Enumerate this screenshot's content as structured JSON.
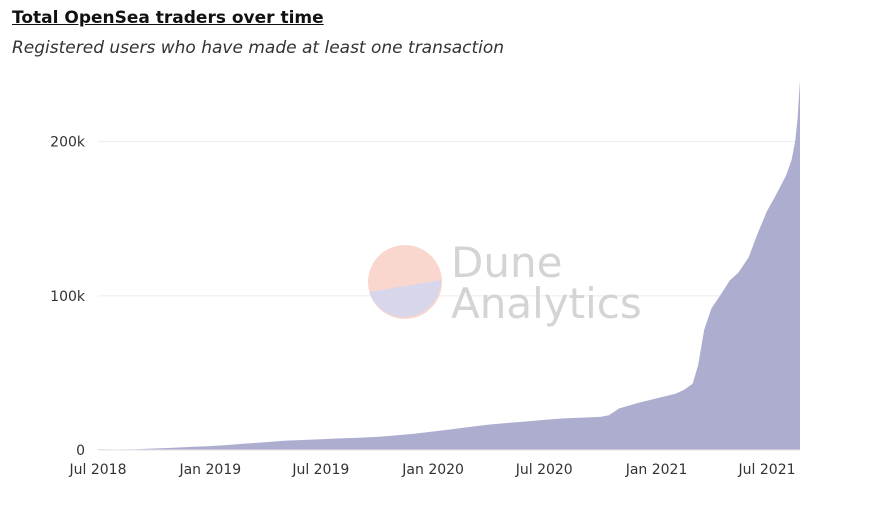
{
  "chart_data": {
    "type": "area",
    "title": "Total OpenSea traders over time",
    "subtitle": "Registered users who have made at least one transaction",
    "xlabel": "",
    "ylabel": "",
    "x_ticks": [
      "Jul 2018",
      "Jan 2019",
      "Jul 2019",
      "Jan 2020",
      "Jul 2020",
      "Jan 2021",
      "Jul 2021"
    ],
    "y_ticks": [
      "0",
      "100k",
      "200k"
    ],
    "ylim": [
      0,
      240000
    ],
    "xlim": [
      "2018-07-01",
      "2021-08-24"
    ],
    "grid": "horizontal",
    "legend": "none",
    "series_color": "#a9a9cc",
    "x": [
      "2018-07-01",
      "2018-08-01",
      "2018-09-01",
      "2018-10-01",
      "2018-11-01",
      "2018-12-01",
      "2019-01-01",
      "2019-02-01",
      "2019-03-01",
      "2019-04-01",
      "2019-05-01",
      "2019-06-01",
      "2019-07-01",
      "2019-08-01",
      "2019-09-01",
      "2019-10-01",
      "2019-11-01",
      "2019-12-01",
      "2020-01-01",
      "2020-02-01",
      "2020-03-01",
      "2020-04-01",
      "2020-05-01",
      "2020-06-01",
      "2020-07-01",
      "2020-08-01",
      "2020-09-01",
      "2020-10-01",
      "2020-10-15",
      "2020-11-01",
      "2020-12-01",
      "2021-01-01",
      "2021-02-01",
      "2021-02-15",
      "2021-03-01",
      "2021-03-10",
      "2021-03-20",
      "2021-04-01",
      "2021-04-15",
      "2021-05-01",
      "2021-05-15",
      "2021-06-01",
      "2021-06-15",
      "2021-07-01",
      "2021-07-15",
      "2021-08-01",
      "2021-08-10",
      "2021-08-16",
      "2021-08-20",
      "2021-08-24"
    ],
    "values": [
      500,
      300,
      500,
      1000,
      1500,
      2000,
      2500,
      3300,
      4200,
      5000,
      6000,
      6500,
      7000,
      7500,
      8000,
      8500,
      9500,
      10500,
      12000,
      13500,
      15000,
      16500,
      17500,
      18500,
      19500,
      20500,
      21000,
      21500,
      22500,
      27000,
      30500,
      33500,
      36500,
      39000,
      43000,
      55000,
      78000,
      92000,
      100000,
      110000,
      115000,
      125000,
      140000,
      155000,
      165000,
      178000,
      188000,
      200000,
      215000,
      240000
    ],
    "watermark": [
      "Dune",
      "Analytics"
    ]
  }
}
